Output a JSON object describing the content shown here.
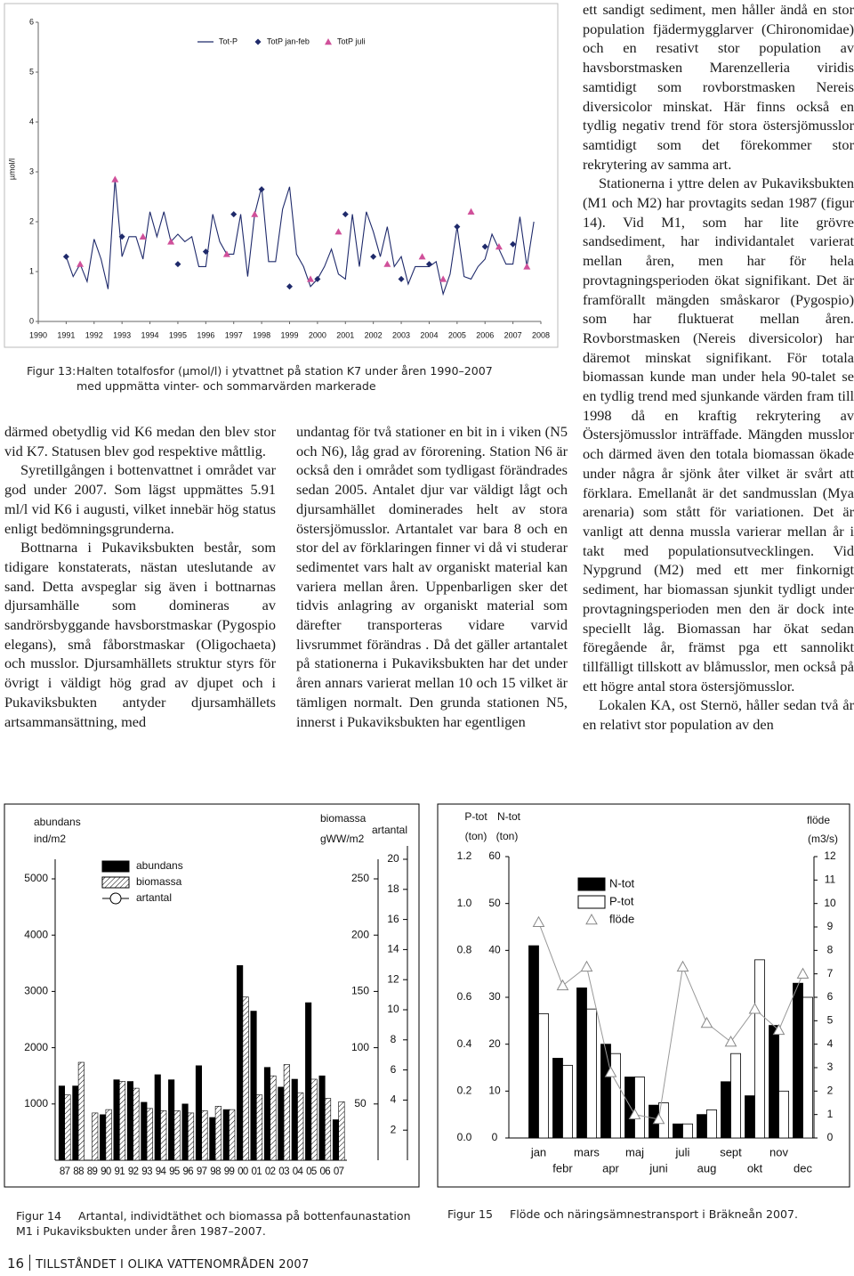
{
  "chart_data": [
    {
      "type": "line",
      "ylabel": "µmol/l",
      "xlim": [
        1990,
        2008
      ],
      "ylim": [
        0,
        6
      ],
      "xticks": [
        1990,
        1991,
        1992,
        1993,
        1994,
        1995,
        1996,
        1997,
        1998,
        1999,
        2000,
        2001,
        2002,
        2003,
        2004,
        2005,
        2006,
        2007,
        2008
      ],
      "yticks": [
        0,
        1,
        2,
        3,
        4,
        5,
        6
      ],
      "series": [
        {
          "name": "Tot-P",
          "color": "#1f2a6b",
          "marker": "line",
          "x": [
            1991,
            1991.25,
            1991.5,
            1991.75,
            1992,
            1992.25,
            1992.5,
            1992.75,
            1993,
            1993.25,
            1993.5,
            1993.75,
            1994,
            1994.25,
            1994.5,
            1994.75,
            1995,
            1995.25,
            1995.5,
            1995.75,
            1996,
            1996.25,
            1996.5,
            1996.75,
            1997,
            1997.25,
            1997.5,
            1997.75,
            1998,
            1998.25,
            1998.5,
            1998.75,
            1999,
            1999.25,
            1999.5,
            1999.75,
            2000,
            2000.25,
            2000.5,
            2000.75,
            2001,
            2001.25,
            2001.5,
            2001.75,
            2002,
            2002.25,
            2002.5,
            2002.75,
            2003,
            2003.25,
            2003.5,
            2003.75,
            2004,
            2004.25,
            2004.5,
            2004.75,
            2005,
            2005.25,
            2005.5,
            2005.75,
            2006,
            2006.25,
            2006.5,
            2006.75,
            2007,
            2007.25,
            2007.5,
            2007.75
          ],
          "values": [
            1.3,
            0.9,
            1.15,
            0.8,
            1.65,
            1.25,
            0.65,
            2.85,
            1.3,
            1.7,
            1.7,
            1.25,
            2.2,
            1.7,
            2.2,
            1.6,
            1.75,
            1.6,
            1.7,
            1.1,
            1.1,
            2.15,
            1.6,
            1.35,
            1.35,
            2.15,
            0.9,
            2.15,
            2.7,
            1.2,
            1.2,
            2.25,
            2.7,
            1.35,
            1.1,
            0.7,
            0.85,
            1.1,
            1.45,
            0.95,
            0.85,
            2.15,
            1.1,
            2.2,
            1.8,
            1.3,
            1.9,
            1.1,
            1.3,
            0.75,
            1.1,
            1.1,
            1.1,
            1.2,
            0.55,
            0.95,
            1.9,
            0.9,
            0.85,
            1.1,
            1.25,
            1.75,
            1.45,
            1.15,
            1.15,
            2.1,
            1.1,
            2.0
          ]
        },
        {
          "name": "TotP jan-feb",
          "color": "#1f2a6b",
          "marker": "diamond",
          "x": [
            1991,
            1993,
            1995,
            1996,
            1997,
            1998,
            1999,
            2000,
            2001,
            2002,
            2003,
            2004,
            2005,
            2006,
            2007
          ],
          "values": [
            1.3,
            1.7,
            1.15,
            1.4,
            2.15,
            2.65,
            0.7,
            0.85,
            2.15,
            1.3,
            0.85,
            1.15,
            1.9,
            1.5,
            1.55
          ]
        },
        {
          "name": "TotP juli",
          "color": "#d0509a",
          "marker": "triangle",
          "x": [
            1991.5,
            1992.75,
            1993.75,
            1994.75,
            1996.75,
            1997.75,
            1999.75,
            2000.75,
            2002.5,
            2003.75,
            2004.5,
            2005.5,
            2006.5,
            2007.5
          ],
          "values": [
            1.15,
            2.85,
            1.7,
            1.6,
            1.35,
            2.15,
            0.85,
            1.8,
            1.15,
            1.3,
            0.85,
            2.2,
            1.5,
            1.1
          ]
        }
      ]
    },
    {
      "type": "bar",
      "ylabel": "abundans",
      "yunit": "ind/m2",
      "y2label": "biomassa",
      "y2unit": "gWW/m2",
      "y3label": "artantal",
      "categories": [
        "87",
        "88",
        "89",
        "90",
        "91",
        "92",
        "93",
        "94",
        "95",
        "96",
        "97",
        "98",
        "99",
        "00",
        "01",
        "02",
        "03",
        "04",
        "05",
        "06",
        "07"
      ],
      "ylim": [
        0,
        5000
      ],
      "yticks": [
        1000,
        2000,
        3000,
        4000,
        5000
      ],
      "y2lim": [
        0,
        250
      ],
      "y2ticks": [
        50,
        100,
        150,
        200,
        250
      ],
      "y3lim": [
        0,
        20
      ],
      "y3ticks": [
        2,
        4,
        6,
        8,
        10,
        12,
        14,
        16,
        18,
        20
      ],
      "series": [
        {
          "name": "abundans",
          "color": "#000000",
          "pattern": "solid",
          "values": [
            1320,
            1320,
            null,
            810,
            1430,
            1400,
            1030,
            1520,
            1430,
            1000,
            1680,
            760,
            900,
            3460,
            2650,
            1650,
            1300,
            1440,
            2800,
            1500,
            720
          ]
        },
        {
          "name": "biomassa",
          "color": "#ffffff",
          "pattern": "hatch",
          "axis": "y2",
          "values": [
            58,
            87,
            42,
            45,
            70,
            64,
            46,
            44,
            44,
            42,
            44,
            48,
            45,
            145,
            58,
            75,
            85,
            60,
            72,
            55,
            52
          ]
        },
        {
          "name": "artantal",
          "color": "#000000",
          "pattern": "circle-line",
          "axis": "y3",
          "values": [
            null,
            null,
            null,
            null,
            null,
            null,
            null,
            null,
            null,
            null,
            null,
            null,
            null,
            null,
            null,
            null,
            null,
            null,
            null,
            null,
            null
          ]
        }
      ]
    },
    {
      "type": "combo",
      "ylabel": "N-tot",
      "yunit": "(ton)",
      "y2label": "P-tot",
      "y2unit": "(ton)",
      "y3label": "flöde",
      "y3unit": "(m3/s)",
      "categories": [
        "jan",
        "febr",
        "mars",
        "apr",
        "maj",
        "juni",
        "juli",
        "aug",
        "sept",
        "okt",
        "nov",
        "dec"
      ],
      "ylim": [
        0,
        60
      ],
      "yticks": [
        0,
        10,
        20,
        30,
        40,
        50,
        60
      ],
      "y2lim": [
        0,
        1.2
      ],
      "y2ticks": [
        {
          "value": 0,
          "label": "0.0"
        },
        0.2,
        0.4,
        0.6,
        0.8,
        {
          "value": 1,
          "label": "1.0"
        },
        1.2
      ],
      "y3lim": [
        0,
        12
      ],
      "y3ticks": [
        0,
        1,
        2,
        3,
        4,
        5,
        6,
        7,
        8,
        9,
        10,
        11,
        12
      ],
      "series": [
        {
          "name": "N-tot",
          "color": "#000000",
          "kind": "bar",
          "values": [
            41,
            17,
            32,
            20,
            13,
            7,
            3,
            5,
            12,
            9,
            24,
            33
          ]
        },
        {
          "name": "P-tot",
          "color": "#ffffff",
          "kind": "bar",
          "axis": "y2",
          "values": [
            0.53,
            0.31,
            0.55,
            0.36,
            0.26,
            0.15,
            0.06,
            0.12,
            0.36,
            0.76,
            0.2,
            0.6
          ]
        },
        {
          "name": "flöde",
          "color": "#888888",
          "kind": "triangle-line",
          "axis": "y3",
          "values": [
            9.2,
            6.5,
            7.3,
            2.8,
            1.0,
            0.8,
            7.3,
            4.9,
            4.1,
            5.5,
            4.6,
            7.0
          ]
        }
      ]
    }
  ],
  "captions": [
    {
      "label": "Figur 13:",
      "text": "Halten totalfosfor (µmol/l) i ytvattnet på station K7 under åren 1990–2007 med uppmätta vinter- och sommarvärden markerade"
    },
    {
      "label": "Figur 14",
      "text": "Artantal, individtäthet och biomassa på bottenfaunastation M1 i Pukaviksbukten under åren 1987–2007."
    },
    {
      "label": "Figur 15",
      "text": "Flöde och näringsämnestransport i Bräkneån 2007."
    }
  ],
  "columns": [
    [
      "därmed obetydlig vid K6 medan den blev stor vid K7. Statusen blev god respektive måttlig.",
      "Syretillgången i bottenvattnet i området var god under 2007. Som lägst uppmättes 5.91 ml/l vid K6 i augusti, vilket innebär hög status enligt bedömningsgrunderna.",
      "Bottnarna i Pukaviksbukten består, som tidigare konstaterats, nästan uteslutande av sand. Detta avspeglar sig även i bottnarnas djursamhälle som domineras av sandrörsbyggande havsborstmaskar (Pygospio elegans), små fåborstmaskar (Oligochaeta) och musslor. Djursamhällets struktur styrs för övrigt i väldigt hög grad av djupet och i Pukaviksbukten antyder djursamhällets artsammansättning, med"
    ],
    [
      "undantag för två stationer en bit in i viken (N5 och N6), låg grad av förorening. Station N6 är också den i området som tydligast förändrades sedan 2005. Antalet djur var väldigt lågt och djursamhället dominerades helt av stora östersjömusslor. Artantalet var bara 8 och en stor del av förklaringen finner vi då vi studerar sedimentet vars halt av organiskt material kan variera mellan åren. Uppenbarligen sker det tidvis anlagring av organiskt material som därefter transporteras vidare varvid livsrummet förändras . Då det gäller artantalet på stationerna i Pukaviksbukten har det under åren annars varierat mellan 10 och 15 vilket är tämligen normalt. Den grunda stationen N5, innerst i Pukaviksbukten har egentligen"
    ],
    [
      "ett sandigt sediment, men håller ändå en stor population fjädermygglarver (Chironomidae) och en resativt stor population av havsborstmasken Marenzelleria viridis samtidigt som rovborstmasken Nereis diversicolor minskat. Här finns också en tydlig negativ trend för stora östersjömusslor samtidigt som det förekommer stor rekrytering av samma art.",
      "Stationerna i yttre delen av Pukaviksbukten (M1 och M2) har provtagits sedan 1987 (figur 14). Vid M1, som har lite grövre sandsediment, har individantalet varierat mellan åren, men har för hela provtagningsperioden ökat signifikant. Det är framförallt mängden småskaror (Pygospio) som har fluktuerat mellan åren. Rovborstmasken (Nereis diversicolor) har däremot minskat signifikant. För totala biomassan kunde man under hela 90-talet se en tydlig trend med sjunkande värden fram till 1998 då en kraftig rekrytering av Östersjömusslor inträffade. Mängden musslor och därmed även den totala biomassan ökade under några år sjönk åter vilket är svårt att förklara. Emellanåt är det sandmusslan (Mya arenaria) som stått för variationen. Det är vanligt att denna mussla varierar mellan år i takt med populationsutvecklingen. Vid Nypgrund (M2) med ett mer finkornigt sediment, har biomassan sjunkit tydligt under provtagningsperioden men den är dock inte speciellt låg. Biomassan har ökat sedan föregående år, främst pga ett sannolikt tillfälligt tillskott av blåmusslor, men också på ett högre antal stora östersjömusslor.",
      "Lokalen KA, ost Sternö, håller sedan två år en relativt stor population av den"
    ]
  ],
  "footer": {
    "page": "16",
    "title": "TILLSTÅNDET I OLIKA VATTENOMRÅDEN 2007"
  }
}
